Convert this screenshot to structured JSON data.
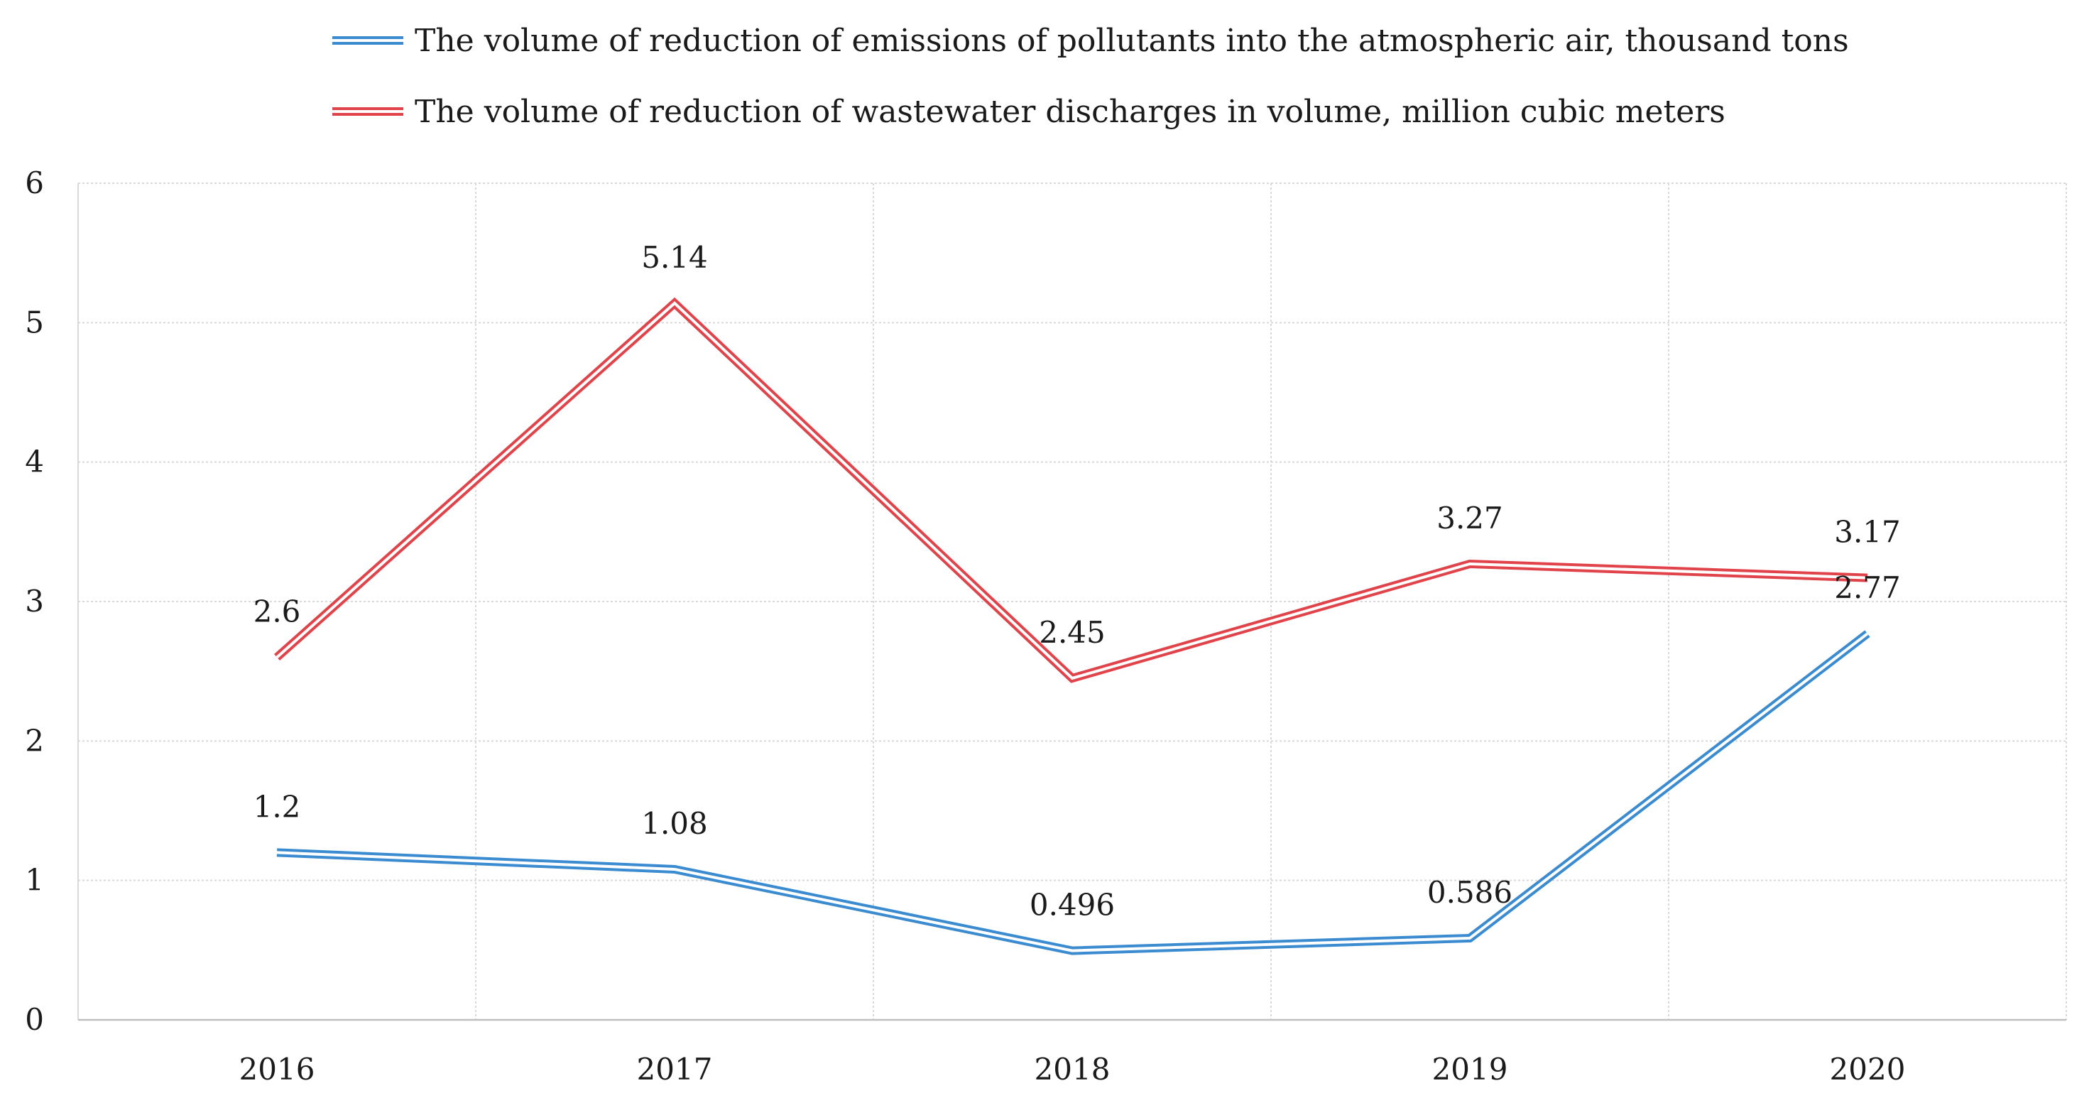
{
  "chart_data": {
    "type": "line",
    "title": "",
    "xlabel": "",
    "ylabel": "",
    "categories": [
      "2016",
      "2017",
      "2018",
      "2019",
      "2020"
    ],
    "ylim": [
      0,
      6
    ],
    "yticks": [
      "0",
      "1",
      "2",
      "3",
      "4",
      "5",
      "6"
    ],
    "grid": true,
    "legend_position": "top-center",
    "series": [
      {
        "name": "The volume of reduction of emissions of pollutants into the atmospheric air, thousand tons",
        "color": "#3a8bd0",
        "values": [
          1.2,
          1.08,
          0.496,
          0.586,
          2.77
        ],
        "labels": [
          "1.2",
          "1.08",
          "0.496",
          "0.586",
          "2.77"
        ]
      },
      {
        "name": "The volume of reduction of wastewater discharges in volume, million cubic meters",
        "color": "#e0444a",
        "values": [
          2.6,
          5.14,
          2.45,
          3.27,
          3.17
        ],
        "labels": [
          "2.6",
          "5.14",
          "2.45",
          "3.27",
          "3.17"
        ]
      }
    ]
  }
}
